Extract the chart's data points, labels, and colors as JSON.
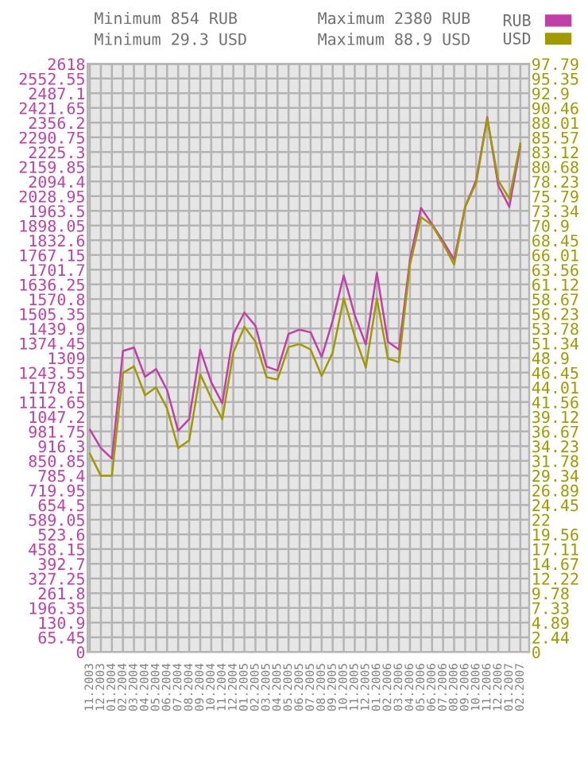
{
  "chart_data": {
    "type": "line",
    "categories": [
      "11.2003",
      "12.2003",
      "01.2004",
      "02.2004",
      "03.2004",
      "04.2004",
      "05.2004",
      "06.2004",
      "07.2004",
      "08.2004",
      "09.2004",
      "10.2004",
      "11.2004",
      "12.2004",
      "01.2005",
      "02.2005",
      "03.2005",
      "04.2005",
      "05.2005",
      "06.2005",
      "07.2005",
      "08.2005",
      "09.2005",
      "10.2005",
      "11.2005",
      "12.2005",
      "01.2006",
      "02.2006",
      "03.2006",
      "04.2006",
      "05.2006",
      "06.2006",
      "07.2006",
      "08.2006",
      "09.2006",
      "10.2006",
      "11.2006",
      "12.2006",
      "01.2007",
      "02.2007"
    ],
    "series": [
      {
        "name": "RUB",
        "color": "#c040a8",
        "values": [
          990,
          908,
          861,
          1340,
          1355,
          1225,
          1260,
          1166,
          985,
          1037,
          1346,
          1201,
          1107,
          1416,
          1511,
          1452,
          1271,
          1253,
          1416,
          1435,
          1423,
          1313,
          1475,
          1676,
          1499,
          1369,
          1687,
          1381,
          1346,
          1746,
          1977,
          1904,
          1829,
          1746,
          1982,
          2100,
          2380,
          2076,
          1982,
          2253
        ]
      },
      {
        "name": "USD",
        "color": "#a09a00",
        "axis": "y2",
        "values": [
          33.0,
          29.3,
          29.3,
          46.4,
          47.5,
          42.7,
          44.0,
          40.5,
          33.9,
          35.2,
          46.2,
          42.2,
          38.7,
          49.8,
          54.1,
          51.6,
          45.7,
          45.3,
          50.7,
          51.2,
          50.3,
          45.9,
          49.8,
          58.8,
          52.5,
          47.3,
          58.8,
          48.8,
          48.2,
          64.4,
          72.3,
          71.0,
          67.9,
          64.4,
          74.0,
          78.0,
          88.7,
          78.4,
          75.4,
          84.6
        ]
      }
    ],
    "ylim": [
      0,
      2618
    ],
    "yticks": [
      0,
      65.45,
      130.9,
      196.35,
      261.8,
      327.25,
      392.7,
      458.15,
      523.6,
      589.05,
      654.5,
      719.95,
      785.4,
      850.85,
      916.3,
      981.75,
      1047.2,
      1112.65,
      1178.1,
      1243.55,
      1309,
      1374.45,
      1439.9,
      1505.35,
      1570.8,
      1636.25,
      1701.7,
      1767.15,
      1832.6,
      1898.05,
      1963.5,
      2028.95,
      2094.4,
      2159.85,
      2225.3,
      2290.75,
      2356.2,
      2421.65,
      2487.1,
      2552.55,
      2618
    ],
    "y2lim": [
      0,
      97.79
    ],
    "y2ticks": [
      0,
      2.44,
      4.89,
      7.33,
      9.78,
      12.22,
      14.67,
      17.11,
      19.56,
      22,
      24.45,
      26.89,
      29.34,
      31.78,
      34.23,
      36.67,
      39.12,
      41.56,
      44.01,
      46.45,
      48.9,
      51.34,
      53.78,
      56.23,
      58.67,
      61.12,
      63.56,
      66.01,
      68.45,
      70.9,
      73.34,
      75.79,
      78.23,
      80.68,
      83.12,
      85.57,
      88.01,
      90.46,
      92.9,
      95.35,
      97.79
    ],
    "grid": true,
    "legend": "top right",
    "annotations": [
      "Minimum 854 RUB",
      "Minimum 29.3 USD",
      "Maximum 2380 RUB",
      "Maximum 88.9 USD"
    ]
  }
}
